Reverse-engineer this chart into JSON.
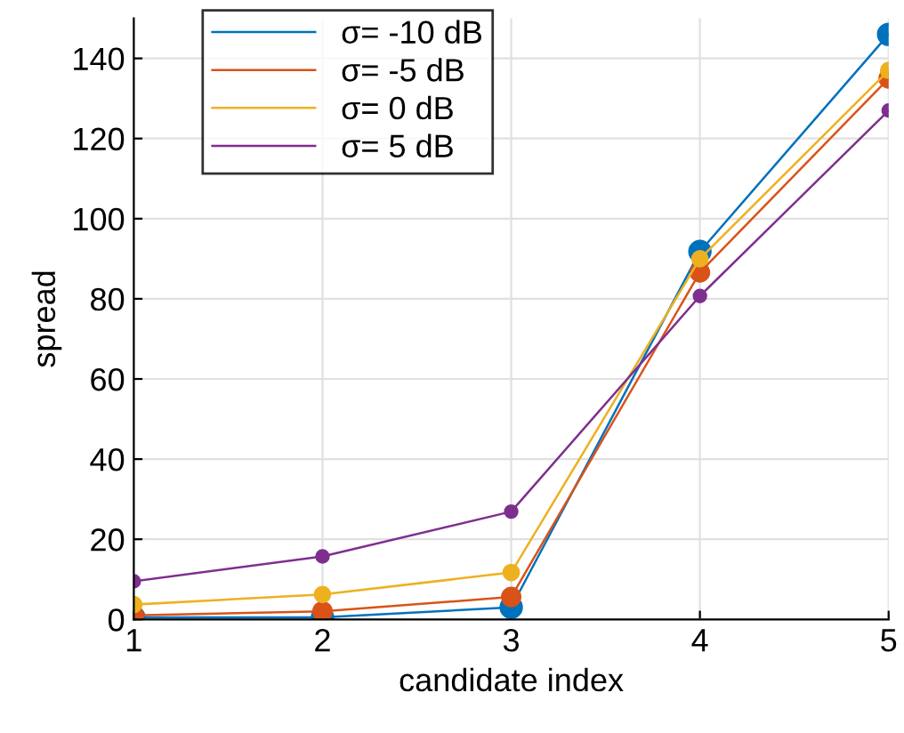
{
  "chart_data": {
    "type": "line",
    "xlabel": "candidate index",
    "ylabel": "spread",
    "x": [
      1,
      2,
      3,
      4,
      5
    ],
    "series": [
      {
        "name": "σ= -10 dB",
        "color": "#0072bd",
        "values": [
          0.5,
          0.5,
          3,
          91.8,
          146
        ]
      },
      {
        "name": "σ= -5 dB",
        "color": "#d95319",
        "values": [
          1,
          2,
          5.6,
          86.6,
          135
        ]
      },
      {
        "name": "σ= 0 dB",
        "color": "#edb120",
        "values": [
          3.7,
          6.2,
          11.7,
          90,
          137
        ]
      },
      {
        "name": "σ= 5 dB",
        "color": "#7e2f8e",
        "values": [
          9.5,
          15.7,
          26.9,
          80.7,
          127
        ]
      }
    ],
    "xlim": [
      1,
      5
    ],
    "xticks": [
      1,
      2,
      3,
      4,
      5
    ],
    "ylim": [
      0,
      150
    ],
    "yticks": [
      0,
      20,
      40,
      60,
      80,
      100,
      120,
      140
    ],
    "grid": true,
    "legend": "top left",
    "marker": "circle",
    "line_style": "solid"
  }
}
